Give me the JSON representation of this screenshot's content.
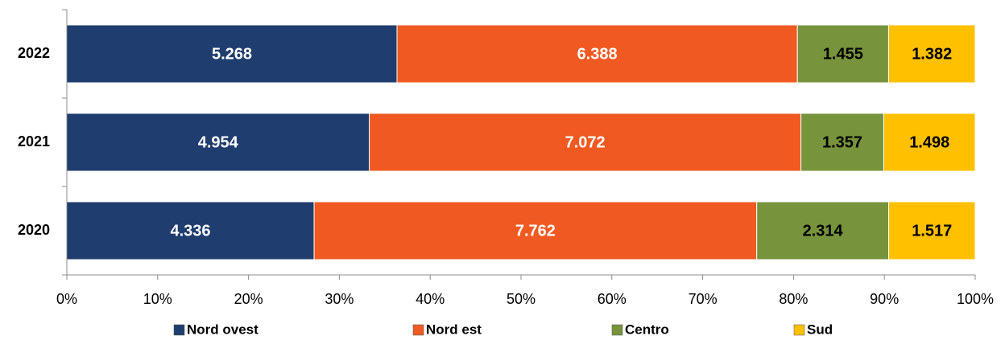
{
  "chart_data": {
    "type": "stacked_percent_bar",
    "orientation": "horizontal",
    "categories": [
      "2020",
      "2021",
      "2022"
    ],
    "series": [
      {
        "name": "Nord ovest",
        "color": "#1f3d6e",
        "label_color": "#ffffff",
        "values": [
          4.336,
          4.954,
          5.268
        ]
      },
      {
        "name": "Nord est",
        "color": "#f05a22",
        "label_color": "#ffffff",
        "values": [
          7.762,
          7.072,
          6.388
        ]
      },
      {
        "name": "Centro",
        "color": "#77933c",
        "label_color": "#000000",
        "values": [
          2.314,
          1.357,
          1.455
        ]
      },
      {
        "name": "Sud",
        "color": "#ffc000",
        "label_color": "#000000",
        "values": [
          1.517,
          1.498,
          1.382
        ]
      }
    ],
    "xlim": [
      0,
      100
    ],
    "xticks": [
      {
        "value": 0,
        "label": "0%"
      },
      {
        "value": 10,
        "label": "10%"
      },
      {
        "value": 20,
        "label": "20%"
      },
      {
        "value": 30,
        "label": "30%"
      },
      {
        "value": 40,
        "label": "40%"
      },
      {
        "value": 50,
        "label": "50%"
      },
      {
        "value": 60,
        "label": "60%"
      },
      {
        "value": 70,
        "label": "70%"
      },
      {
        "value": 80,
        "label": "80%"
      },
      {
        "value": 90,
        "label": "90%"
      },
      {
        "value": 100,
        "label": "100%"
      }
    ],
    "legend": "bottom",
    "grid": false
  }
}
